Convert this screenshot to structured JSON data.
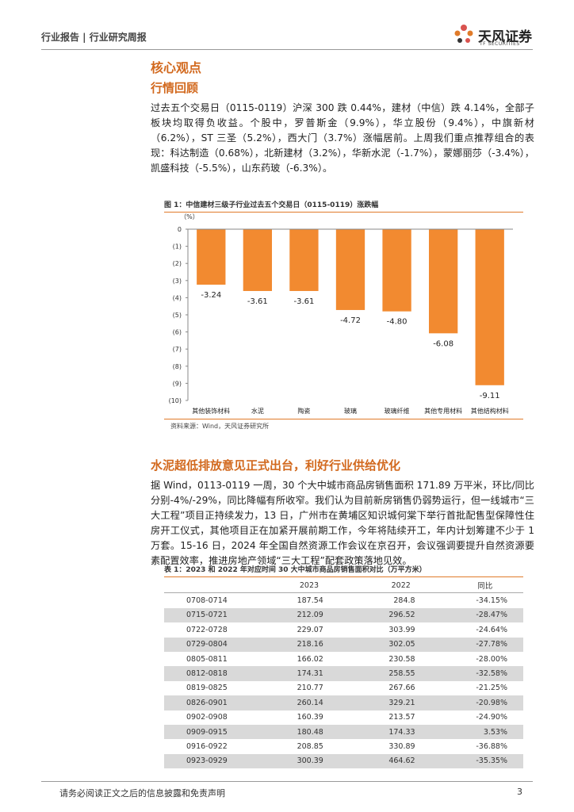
{
  "header": {
    "title": "行业报告 | 行业研究周报",
    "logo": "天风证券",
    "logo_sub": "TF SECURITIES"
  },
  "section1": {
    "title": "核心观点",
    "subtitle": "行情回顾",
    "paragraph": "过去五个交易日（0115-0119）沪深 300 跌 0.44%，建材（中信）跌 4.14%，全部子板块均取得负收益。个股中，罗普斯金（9.9%），华立股份（9.4%），中旗新材（6.2%），ST 三圣（5.2%），西大门（3.7%）涨幅居前。上周我们重点推荐组合的表现：科达制造（0.68%），北新建材（3.2%），华新水泥（-1.7%），蒙娜丽莎（-3.4%），凯盛科技（-5.5%），山东药玻（-6.3%）。"
  },
  "chart_data": {
    "type": "bar",
    "title": "图 1：中信建材三级子行业过去五个交易日（0115-0119）涨跌幅",
    "y_label": "（%）",
    "categories": [
      "其他装饰材料",
      "水泥",
      "陶瓷",
      "玻璃",
      "玻璃纤维",
      "其他专用材料",
      "其他结构材料"
    ],
    "values": [
      -3.24,
      -3.61,
      -3.61,
      -4.72,
      -4.8,
      -6.08,
      -9.11
    ],
    "value_labels": [
      "-3.24",
      "-3.61",
      "-3.61",
      "-4.72",
      "-4.80",
      "-6.08",
      "-9.11"
    ],
    "color": "#f28a30",
    "ylim": [
      0,
      -10
    ],
    "yticks": [
      0,
      {
        "value": -1,
        "label": "(1)"
      },
      {
        "value": -2,
        "label": "(2)"
      },
      {
        "value": -3,
        "label": "(3)"
      },
      {
        "value": -4,
        "label": "(4)"
      },
      {
        "value": -5,
        "label": "(5)"
      },
      {
        "value": -6,
        "label": "(6)"
      },
      {
        "value": -7,
        "label": "(7)"
      },
      {
        "value": -8,
        "label": "(8)"
      },
      {
        "value": -9,
        "label": "(9)"
      },
      {
        "value": -10,
        "label": "(10)"
      }
    ],
    "source": "资料来源：Wind，天风证券研究所"
  },
  "section2": {
    "title": "水泥超低排放意见正式出台，利好行业供给优化",
    "paragraph": "据 Wind，0113-0119 一周，30 个大中城市商品房销售面积 171.89 万平米，环比/同比分别-4%/-29%，同比降幅有所收窄。我们认为目前新房销售仍弱势运行，但一线城市“三大工程”项目正持续发力，13 日，广州市在黄埔区知识城何棠下举行首批配售型保障性住房开工仪式，其他项目正在加紧开展前期工作，今年将陆续开工，年内计划筹建不少于 1 万套。15-16 日，2024 年全国自然资源工作会议在京召开，会议强调要提升自然资源要素配置效率，推进房地产领域“三大工程”配套政策落地见效。"
  },
  "table": {
    "caption": "表 1：2023 和 2022 年对应时间 30 大中城市商品房销售面积对比（万平方米）",
    "header": [
      "2023",
      "2022",
      "同比"
    ],
    "rows": [
      [
        "0708-0714",
        "187.54",
        "284.8",
        "-34.15%"
      ],
      [
        "0715-0721",
        "212.09",
        "296.52",
        "-28.47%"
      ],
      [
        "0722-0728",
        "229.07",
        "303.99",
        "-24.64%"
      ],
      [
        "0729-0804",
        "218.16",
        "302.05",
        "-27.78%"
      ],
      [
        "0805-0811",
        "166.02",
        "230.58",
        "-28.00%"
      ],
      [
        "0812-0818",
        "174.31",
        "258.55",
        "-32.58%"
      ],
      [
        "0819-0825",
        "210.77",
        "267.66",
        "-21.25%"
      ],
      [
        "0826-0901",
        "260.14",
        "329.21",
        "-20.98%"
      ],
      [
        "0902-0908",
        "160.39",
        "213.57",
        "-24.90%"
      ],
      [
        "0909-0915",
        "180.48",
        "174.33",
        "3.53%"
      ],
      [
        "0916-0922",
        "208.85",
        "330.89",
        "-36.88%"
      ],
      [
        "0923-0929",
        "300.39",
        "464.62",
        "-35.35%"
      ]
    ]
  },
  "footer": {
    "disclaimer": "请务必阅读正文之后的信息披露和免责声明",
    "page": "3"
  }
}
